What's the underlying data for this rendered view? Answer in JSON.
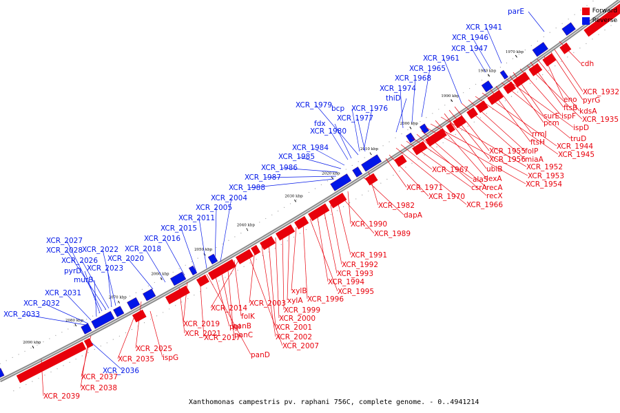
{
  "legend": {
    "forward_label": "Forward",
    "reverse_label": "Reverse",
    "forward_color": "#e8000b",
    "reverse_color": "#0016e8"
  },
  "caption": "Xanthomonas campestris pv. raphani 756C, complete genome. - 0..4941214",
  "ticks": [
    "1970 kbp",
    "1980 kbp",
    "1990 kbp",
    "2000 kbp",
    "2010 kbp",
    "2020 kbp",
    "2030 kbp",
    "2040 kbp",
    "2050 kbp",
    "2060 kbp",
    "2070 kbp",
    "2080 kbp",
    "2090 kbp"
  ],
  "forward_labels": [
    "cdh",
    "XCR_1932",
    "pyrG",
    "eno",
    "kdsA",
    "ftsB",
    "XCR_1935",
    "ispF",
    "surE",
    "pcm",
    "ispD",
    "truD",
    "rrmJ",
    "ftsH",
    "XCR_1944",
    "XCR_1945",
    "folP",
    "miaA",
    "XCR_1955",
    "XCR_1956",
    "ubiB",
    "XCR_1952",
    "lexA",
    "XCR_1953",
    "XCR_1954",
    "recA",
    "recX",
    "alaS",
    "csrA",
    "XCR_1967",
    "XCR_1966",
    "XCR_1970",
    "XCR_1971",
    "XCR_1982",
    "dapA",
    "XCR_1990",
    "XCR_1989",
    "XCR_1991",
    "XCR_1992",
    "XCR_1993",
    "XCR_1994",
    "XCR_1995",
    "XCR_1996",
    "xylB",
    "xylA",
    "XCR_1999",
    "XCR_2000",
    "XCR_2001",
    "XCR_2002",
    "XCR_2003",
    "XCR_2007",
    "XCR_2014",
    "folK",
    "panB",
    "panC",
    "pgi",
    "panD",
    "XCR_2017",
    "XCR_2019",
    "XCR_2021",
    "XCR_2025",
    "ispG",
    "XCR_2035",
    "XCR_2037",
    "XCR_2038",
    "XCR_2039"
  ],
  "reverse_labels": [
    "parE",
    "XCR_1941",
    "XCR_1946",
    "XCR_1947",
    "XCR_1961",
    "XCR_1965",
    "XCR_1968",
    "XCR_1974",
    "thiD",
    "XCR_1979",
    "bcp",
    "XCR_1976",
    "XCR_1977",
    "fdx",
    "XCR_1980",
    "XCR_1984",
    "XCR_1985",
    "XCR_1986",
    "XCR_1987",
    "XCR_1988",
    "XCR_2004",
    "XCR_2005",
    "XCR_2011",
    "XCR_2015",
    "XCR_2016",
    "XCR_2018",
    "XCR_2020",
    "XCR_2027",
    "XCR_2028",
    "XCR_2022",
    "XCR_2026",
    "XCR_2023",
    "pyrD",
    "murB",
    "XCR_2031",
    "XCR_2032",
    "XCR_2033",
    "XCR_2036"
  ]
}
